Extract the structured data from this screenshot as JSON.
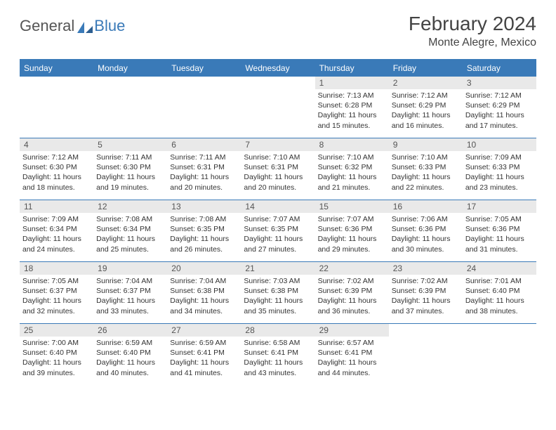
{
  "brand": {
    "part1": "General",
    "part2": "Blue"
  },
  "title": "February 2024",
  "location": "Monte Alegre, Mexico",
  "colors": {
    "accent": "#3a7ab8",
    "header_bg": "#3a7ab8",
    "header_text": "#ffffff",
    "daynum_bg": "#e9e9e9",
    "text": "#333333",
    "page_bg": "#ffffff"
  },
  "weekdays": [
    "Sunday",
    "Monday",
    "Tuesday",
    "Wednesday",
    "Thursday",
    "Friday",
    "Saturday"
  ],
  "weeks": [
    [
      {
        "day": "",
        "lines": []
      },
      {
        "day": "",
        "lines": []
      },
      {
        "day": "",
        "lines": []
      },
      {
        "day": "",
        "lines": []
      },
      {
        "day": "1",
        "lines": [
          "Sunrise: 7:13 AM",
          "Sunset: 6:28 PM",
          "Daylight: 11 hours and 15 minutes."
        ]
      },
      {
        "day": "2",
        "lines": [
          "Sunrise: 7:12 AM",
          "Sunset: 6:29 PM",
          "Daylight: 11 hours and 16 minutes."
        ]
      },
      {
        "day": "3",
        "lines": [
          "Sunrise: 7:12 AM",
          "Sunset: 6:29 PM",
          "Daylight: 11 hours and 17 minutes."
        ]
      }
    ],
    [
      {
        "day": "4",
        "lines": [
          "Sunrise: 7:12 AM",
          "Sunset: 6:30 PM",
          "Daylight: 11 hours and 18 minutes."
        ]
      },
      {
        "day": "5",
        "lines": [
          "Sunrise: 7:11 AM",
          "Sunset: 6:30 PM",
          "Daylight: 11 hours and 19 minutes."
        ]
      },
      {
        "day": "6",
        "lines": [
          "Sunrise: 7:11 AM",
          "Sunset: 6:31 PM",
          "Daylight: 11 hours and 20 minutes."
        ]
      },
      {
        "day": "7",
        "lines": [
          "Sunrise: 7:10 AM",
          "Sunset: 6:31 PM",
          "Daylight: 11 hours and 20 minutes."
        ]
      },
      {
        "day": "8",
        "lines": [
          "Sunrise: 7:10 AM",
          "Sunset: 6:32 PM",
          "Daylight: 11 hours and 21 minutes."
        ]
      },
      {
        "day": "9",
        "lines": [
          "Sunrise: 7:10 AM",
          "Sunset: 6:33 PM",
          "Daylight: 11 hours and 22 minutes."
        ]
      },
      {
        "day": "10",
        "lines": [
          "Sunrise: 7:09 AM",
          "Sunset: 6:33 PM",
          "Daylight: 11 hours and 23 minutes."
        ]
      }
    ],
    [
      {
        "day": "11",
        "lines": [
          "Sunrise: 7:09 AM",
          "Sunset: 6:34 PM",
          "Daylight: 11 hours and 24 minutes."
        ]
      },
      {
        "day": "12",
        "lines": [
          "Sunrise: 7:08 AM",
          "Sunset: 6:34 PM",
          "Daylight: 11 hours and 25 minutes."
        ]
      },
      {
        "day": "13",
        "lines": [
          "Sunrise: 7:08 AM",
          "Sunset: 6:35 PM",
          "Daylight: 11 hours and 26 minutes."
        ]
      },
      {
        "day": "14",
        "lines": [
          "Sunrise: 7:07 AM",
          "Sunset: 6:35 PM",
          "Daylight: 11 hours and 27 minutes."
        ]
      },
      {
        "day": "15",
        "lines": [
          "Sunrise: 7:07 AM",
          "Sunset: 6:36 PM",
          "Daylight: 11 hours and 29 minutes."
        ]
      },
      {
        "day": "16",
        "lines": [
          "Sunrise: 7:06 AM",
          "Sunset: 6:36 PM",
          "Daylight: 11 hours and 30 minutes."
        ]
      },
      {
        "day": "17",
        "lines": [
          "Sunrise: 7:05 AM",
          "Sunset: 6:36 PM",
          "Daylight: 11 hours and 31 minutes."
        ]
      }
    ],
    [
      {
        "day": "18",
        "lines": [
          "Sunrise: 7:05 AM",
          "Sunset: 6:37 PM",
          "Daylight: 11 hours and 32 minutes."
        ]
      },
      {
        "day": "19",
        "lines": [
          "Sunrise: 7:04 AM",
          "Sunset: 6:37 PM",
          "Daylight: 11 hours and 33 minutes."
        ]
      },
      {
        "day": "20",
        "lines": [
          "Sunrise: 7:04 AM",
          "Sunset: 6:38 PM",
          "Daylight: 11 hours and 34 minutes."
        ]
      },
      {
        "day": "21",
        "lines": [
          "Sunrise: 7:03 AM",
          "Sunset: 6:38 PM",
          "Daylight: 11 hours and 35 minutes."
        ]
      },
      {
        "day": "22",
        "lines": [
          "Sunrise: 7:02 AM",
          "Sunset: 6:39 PM",
          "Daylight: 11 hours and 36 minutes."
        ]
      },
      {
        "day": "23",
        "lines": [
          "Sunrise: 7:02 AM",
          "Sunset: 6:39 PM",
          "Daylight: 11 hours and 37 minutes."
        ]
      },
      {
        "day": "24",
        "lines": [
          "Sunrise: 7:01 AM",
          "Sunset: 6:40 PM",
          "Daylight: 11 hours and 38 minutes."
        ]
      }
    ],
    [
      {
        "day": "25",
        "lines": [
          "Sunrise: 7:00 AM",
          "Sunset: 6:40 PM",
          "Daylight: 11 hours and 39 minutes."
        ]
      },
      {
        "day": "26",
        "lines": [
          "Sunrise: 6:59 AM",
          "Sunset: 6:40 PM",
          "Daylight: 11 hours and 40 minutes."
        ]
      },
      {
        "day": "27",
        "lines": [
          "Sunrise: 6:59 AM",
          "Sunset: 6:41 PM",
          "Daylight: 11 hours and 41 minutes."
        ]
      },
      {
        "day": "28",
        "lines": [
          "Sunrise: 6:58 AM",
          "Sunset: 6:41 PM",
          "Daylight: 11 hours and 43 minutes."
        ]
      },
      {
        "day": "29",
        "lines": [
          "Sunrise: 6:57 AM",
          "Sunset: 6:41 PM",
          "Daylight: 11 hours and 44 minutes."
        ]
      },
      {
        "day": "",
        "lines": []
      },
      {
        "day": "",
        "lines": []
      }
    ]
  ]
}
